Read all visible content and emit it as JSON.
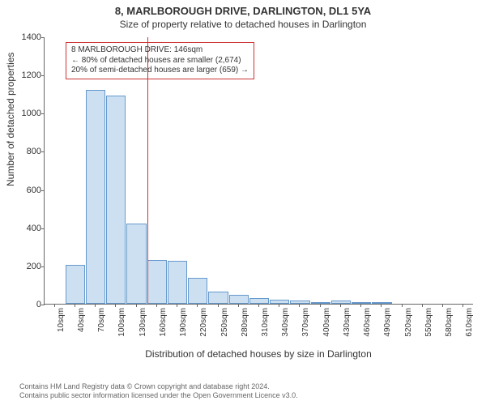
{
  "header": {
    "address": "8, MARLBOROUGH DRIVE, DARLINGTON, DL1 5YA",
    "subtitle": "Size of property relative to detached houses in Darlington"
  },
  "chart": {
    "type": "histogram",
    "y_label": "Number of detached properties",
    "x_label": "Distribution of detached houses by size in Darlington",
    "ylim": [
      0,
      1400
    ],
    "ytick_step": 200,
    "yticks": [
      0,
      200,
      400,
      600,
      800,
      1000,
      1200,
      1400
    ],
    "xticks": [
      "10sqm",
      "40sqm",
      "70sqm",
      "100sqm",
      "130sqm",
      "160sqm",
      "190sqm",
      "220sqm",
      "250sqm",
      "280sqm",
      "310sqm",
      "340sqm",
      "370sqm",
      "400sqm",
      "430sqm",
      "460sqm",
      "490sqm",
      "520sqm",
      "550sqm",
      "580sqm",
      "610sqm"
    ],
    "bar_values": [
      0,
      205,
      1120,
      1090,
      420,
      230,
      225,
      135,
      65,
      45,
      30,
      20,
      15,
      10,
      15,
      5,
      10,
      0,
      0,
      0,
      0
    ],
    "bar_fill": "#cde0f2",
    "bar_stroke": "#6699cc",
    "bar_width_ratio": 0.96,
    "background_color": "#ffffff",
    "axis_color": "#666666",
    "tick_fontsize": 11,
    "label_fontsize": 12,
    "marker": {
      "x_sqm": 146,
      "color": "#cc3333",
      "width": 1
    },
    "annotation": {
      "border_color": "#cc3333",
      "lines": [
        "8 MARLBOROUGH DRIVE: 146sqm",
        "← 80% of detached houses are smaller (2,674)",
        "20% of semi-detached houses are larger (659) →"
      ]
    }
  },
  "footer": {
    "line1": "Contains HM Land Registry data © Crown copyright and database right 2024.",
    "line2": "Contains public sector information licensed under the Open Government Licence v3.0."
  }
}
